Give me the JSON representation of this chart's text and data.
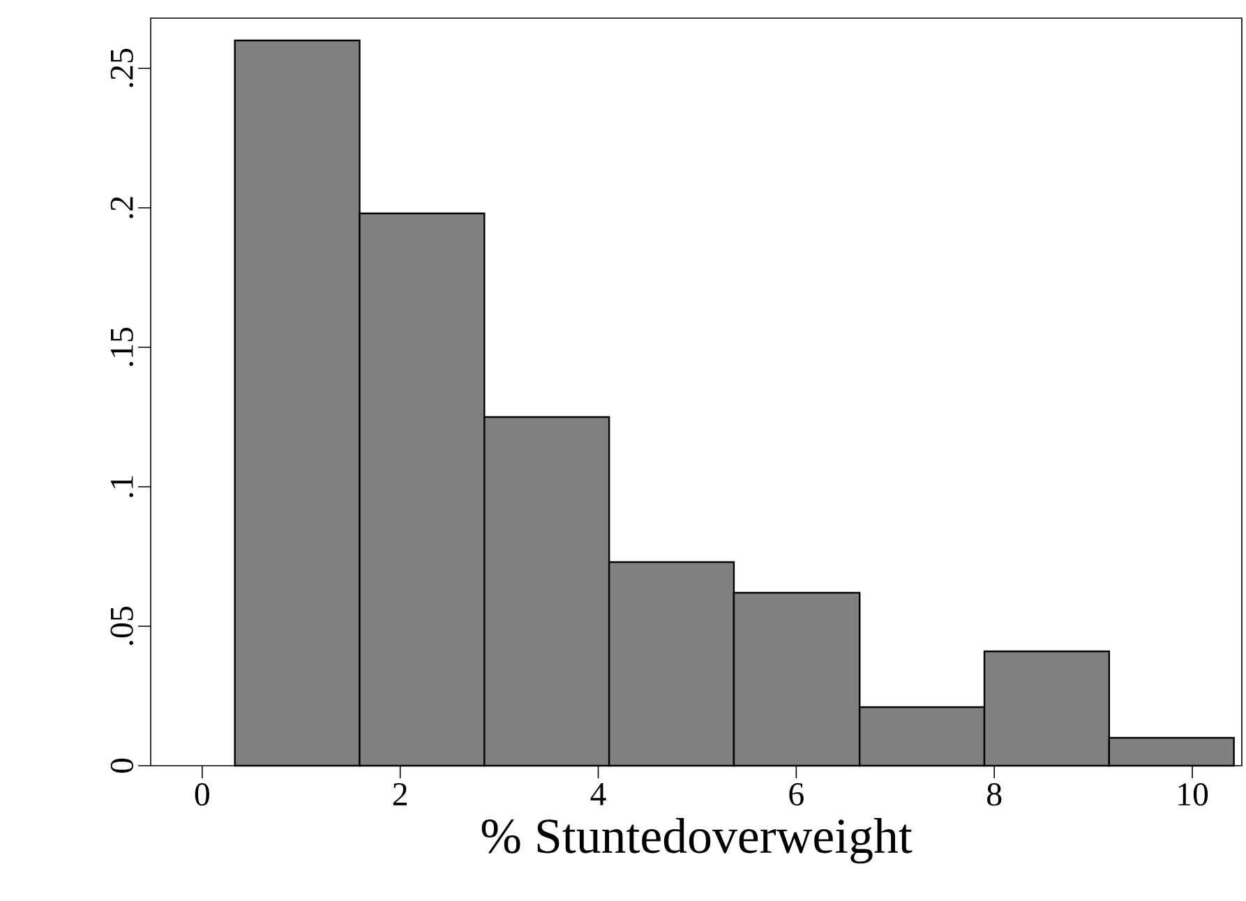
{
  "chart_data": {
    "type": "histogram",
    "xlabel": "% Stuntedoverweight",
    "bins": [
      0.33,
      1.59,
      2.85,
      4.11,
      5.37,
      6.64,
      7.9,
      9.16,
      10.42
    ],
    "values": [
      0.26,
      0.198,
      0.125,
      0.073,
      0.062,
      0.021,
      0.041,
      0.01
    ],
    "color": "#808080",
    "xlim": [
      -0.52,
      10.5
    ],
    "ylim": [
      0,
      0.268
    ],
    "xticks": [
      0,
      2,
      4,
      6,
      8,
      10
    ],
    "yticks": [
      {
        "value": 0,
        "label": "0"
      },
      {
        "value": 0.05,
        "label": ".05"
      },
      {
        "value": 0.1,
        "label": ".1"
      },
      {
        "value": 0.15,
        "label": ".15"
      },
      {
        "value": 0.2,
        "label": ".2"
      },
      {
        "value": 0.25,
        "label": ".25"
      }
    ],
    "grid": false
  }
}
